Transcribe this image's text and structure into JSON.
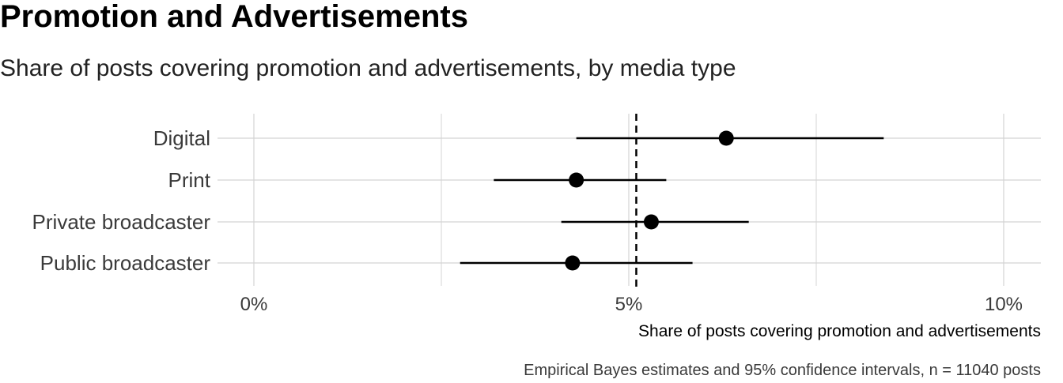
{
  "chart_data": {
    "type": "dot-interval",
    "title": "Promotion and Advertisements",
    "subtitle": "Share of posts covering promotion and advertisements, by media type",
    "xlabel": "Share of posts covering promotion and advertisements",
    "caption": "Empirical Bayes estimates and 95% confidence intervals, n = 11040 posts",
    "categories": [
      "Digital",
      "Print",
      "Private broadcaster",
      "Public broadcaster"
    ],
    "estimates": [
      6.3,
      4.3,
      5.3,
      4.25
    ],
    "ci_low": [
      4.3,
      3.2,
      4.1,
      2.75
    ],
    "ci_high": [
      8.4,
      5.5,
      6.6,
      5.85
    ],
    "reference_line": 5.1,
    "xlim": [
      -0.5,
      10.5
    ],
    "xticks": [
      0,
      5,
      10
    ],
    "xtick_labels": [
      "0%",
      "5%",
      "10%"
    ],
    "minor_gridlines": [
      2.5,
      7.5
    ],
    "grid": true,
    "colors": {
      "points": "#000000",
      "grid": "#d4d4d4",
      "text": "#3a3a3a"
    }
  }
}
